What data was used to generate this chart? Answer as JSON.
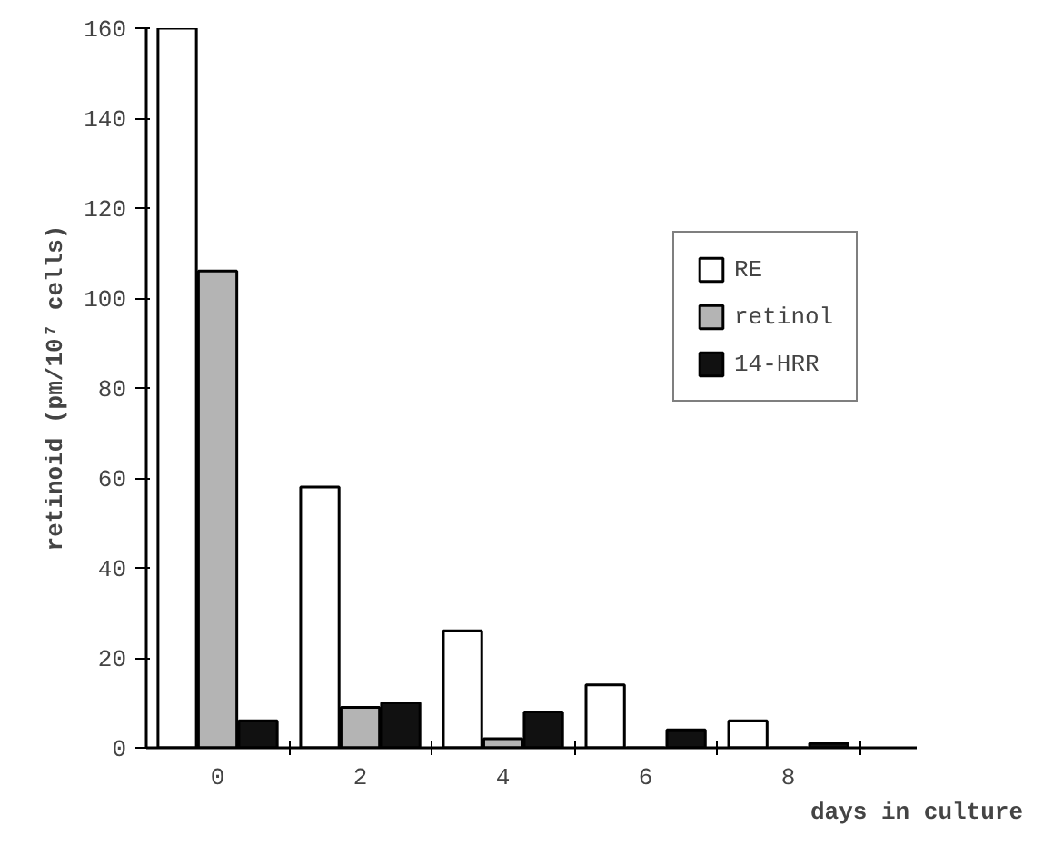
{
  "chart_data": {
    "type": "bar",
    "xlabel": "days in culture",
    "ylabel": "retinoid (pm/10⁷ cells)",
    "categories": [
      "0",
      "2",
      "4",
      "6",
      "8"
    ],
    "series": [
      {
        "name": "RE",
        "color": "#ffffff",
        "values": [
          160,
          58,
          26,
          14,
          6
        ]
      },
      {
        "name": "retinol",
        "color": "#b4b4b4",
        "values": [
          106,
          9,
          2,
          0,
          0
        ]
      },
      {
        "name": "14-HRR",
        "color": "#111111",
        "values": [
          6,
          10,
          8,
          4,
          1
        ]
      }
    ],
    "ylim": [
      0,
      160
    ],
    "yticks": [
      0,
      20,
      40,
      60,
      80,
      100,
      120,
      140,
      160
    ],
    "grid": false,
    "legend": "right"
  }
}
